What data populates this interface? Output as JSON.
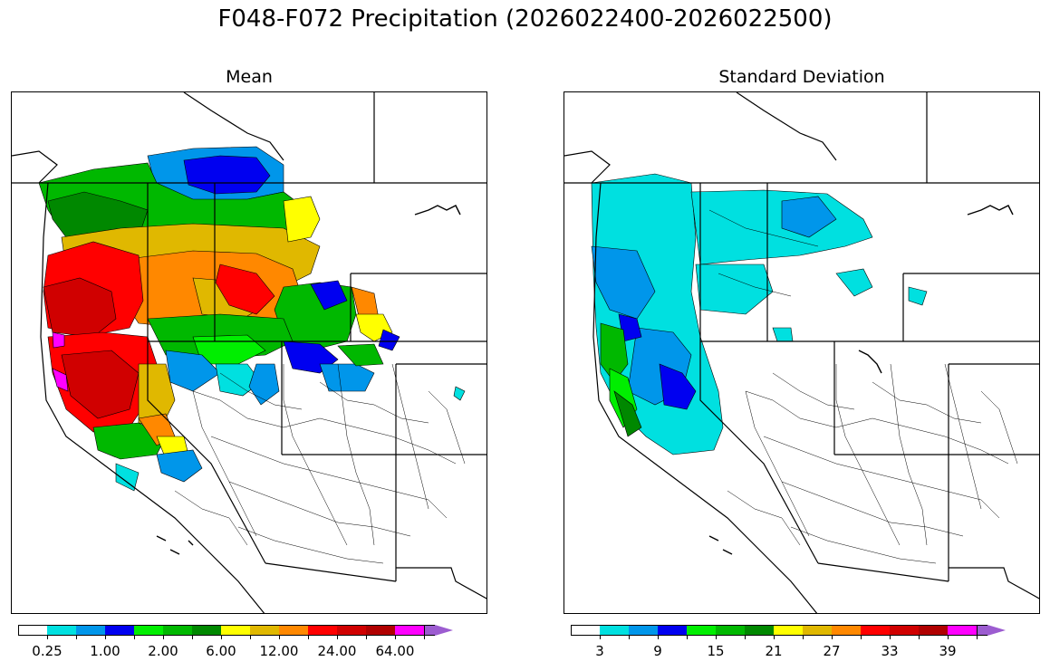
{
  "title": "F048-F072 Precipitation (2026022400-2026022500)",
  "panels": [
    {
      "subtitle": "Mean",
      "colorbar": {
        "colors": [
          "#ffffff",
          "#00e0e0",
          "#0096ea",
          "#0000f0",
          "#00ee00",
          "#00b800",
          "#008800",
          "#ffff00",
          "#e0b800",
          "#ff8800",
          "#ff0000",
          "#d00000",
          "#b00000",
          "#ff00ff",
          "#9c5cd0"
        ],
        "labels": [
          "0.25",
          "1.00",
          "2.00",
          "6.00",
          "12.00",
          "24.00",
          "64.00"
        ]
      }
    },
    {
      "subtitle": "Standard Deviation",
      "colorbar": {
        "colors": [
          "#ffffff",
          "#00e0e0",
          "#0096ea",
          "#0000f0",
          "#00ee00",
          "#00b800",
          "#008800",
          "#ffff00",
          "#e0b800",
          "#ff8800",
          "#ff0000",
          "#d00000",
          "#b00000",
          "#ff00ff",
          "#9c5cd0"
        ],
        "labels": [
          "3",
          "9",
          "15",
          "21",
          "27",
          "33",
          "39"
        ]
      }
    }
  ]
}
